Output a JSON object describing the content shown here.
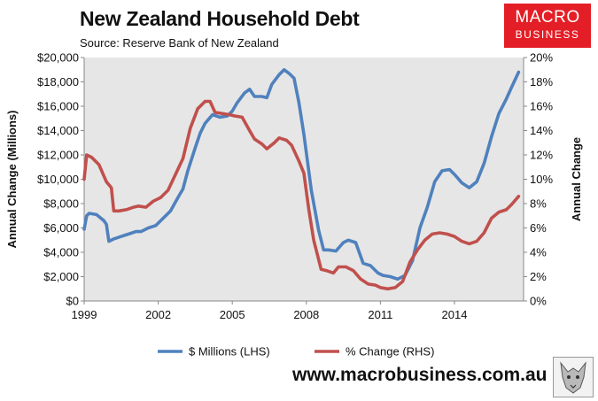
{
  "header": {
    "title": "New Zealand Household Debt",
    "source": "Source: Reserve Bank of New Zealand"
  },
  "logo": {
    "line1": "MACRO",
    "line2": "BUSINESS"
  },
  "footer": {
    "url": "www.macrobusiness.com.au"
  },
  "chart_data": {
    "type": "line",
    "ylabel_left": "Annual Change (Millions)",
    "ylabel_right": "Annual Change",
    "x_ticks": [
      "1999",
      "2002",
      "2005",
      "2008",
      "2011",
      "2014"
    ],
    "xlim": [
      1999,
      2016.8
    ],
    "y_left_ticks": [
      "$0",
      "$2,000",
      "$4,000",
      "$6,000",
      "$8,000",
      "$10,000",
      "$12,000",
      "$14,000",
      "$16,000",
      "$18,000",
      "$20,000"
    ],
    "y_left_lim": [
      0,
      20000
    ],
    "y_right_ticks": [
      "0%",
      "2%",
      "4%",
      "6%",
      "8%",
      "10%",
      "12%",
      "14%",
      "16%",
      "18%",
      "20%"
    ],
    "y_right_lim": [
      0,
      20
    ],
    "grid": false,
    "legend_position": "bottom",
    "series": [
      {
        "name": "$ Millions (LHS)",
        "axis": "left",
        "color": "#4f81bd",
        "x": [
          1999.0,
          1999.1,
          1999.2,
          1999.5,
          1999.8,
          1999.9,
          2000.0,
          2000.2,
          2000.5,
          2000.8,
          2001.1,
          2001.3,
          2001.6,
          2001.9,
          2002.2,
          2002.5,
          2002.8,
          2003.0,
          2003.2,
          2003.5,
          2003.7,
          2003.9,
          2004.2,
          2004.5,
          2004.8,
          2005.0,
          2005.2,
          2005.5,
          2005.7,
          2005.9,
          2006.2,
          2006.4,
          2006.6,
          2006.9,
          2007.1,
          2007.3,
          2007.5,
          2007.7,
          2007.9,
          2008.2,
          2008.5,
          2008.7,
          2008.9,
          2009.2,
          2009.5,
          2009.7,
          2010.0,
          2010.3,
          2010.6,
          2010.9,
          2011.1,
          2011.4,
          2011.7,
          2012.0,
          2012.3,
          2012.6,
          2012.9,
          2013.2,
          2013.5,
          2013.8,
          2014.0,
          2014.3,
          2014.6,
          2014.9,
          2015.2,
          2015.5,
          2015.8,
          2016.1,
          2016.3,
          2016.6
        ],
        "y": [
          5900,
          7000,
          7200,
          7100,
          6600,
          6300,
          4900,
          5100,
          5300,
          5500,
          5700,
          5700,
          6000,
          6200,
          6800,
          7400,
          8500,
          9200,
          10700,
          12600,
          13800,
          14600,
          15300,
          15100,
          15200,
          15600,
          16300,
          17100,
          17400,
          16800,
          16800,
          16700,
          17800,
          18600,
          19000,
          18700,
          18300,
          16300,
          13700,
          9100,
          5800,
          4200,
          4200,
          4100,
          4800,
          5000,
          4800,
          3100,
          2900,
          2300,
          2100,
          2000,
          1800,
          2100,
          3300,
          6000,
          7700,
          9800,
          10700,
          10800,
          10400,
          9700,
          9300,
          9800,
          11300,
          13500,
          15400,
          16600,
          17500,
          18800
        ]
      },
      {
        "name": "% Change (RHS)",
        "axis": "right",
        "color": "#c0504d",
        "x": [
          1999.0,
          1999.1,
          1999.3,
          1999.6,
          1999.9,
          2000.1,
          2000.2,
          2000.4,
          2000.7,
          2001.0,
          2001.2,
          2001.5,
          2001.8,
          2002.1,
          2002.4,
          2002.7,
          2003.0,
          2003.3,
          2003.6,
          2003.9,
          2004.1,
          2004.3,
          2004.6,
          2004.9,
          2005.1,
          2005.4,
          2005.7,
          2005.9,
          2006.2,
          2006.4,
          2006.7,
          2006.9,
          2007.2,
          2007.4,
          2007.7,
          2007.9,
          2008.1,
          2008.3,
          2008.6,
          2008.8,
          2009.1,
          2009.3,
          2009.6,
          2009.9,
          2010.2,
          2010.5,
          2010.8,
          2011.0,
          2011.3,
          2011.6,
          2011.9,
          2012.2,
          2012.5,
          2012.8,
          2013.1,
          2013.4,
          2013.7,
          2014.0,
          2014.3,
          2014.6,
          2014.9,
          2015.2,
          2015.5,
          2015.8,
          2016.1,
          2016.3,
          2016.6
        ],
        "y": [
          10.0,
          12.0,
          11.8,
          11.2,
          9.8,
          9.3,
          7.4,
          7.4,
          7.5,
          7.7,
          7.8,
          7.7,
          8.2,
          8.5,
          9.1,
          10.4,
          11.7,
          14.2,
          15.8,
          16.4,
          16.4,
          15.5,
          15.4,
          15.3,
          15.2,
          15.1,
          14.0,
          13.3,
          12.9,
          12.5,
          13.0,
          13.4,
          13.2,
          12.8,
          11.5,
          10.5,
          7.5,
          5.0,
          2.6,
          2.5,
          2.3,
          2.8,
          2.8,
          2.5,
          1.8,
          1.4,
          1.3,
          1.1,
          1.0,
          1.1,
          1.6,
          3.2,
          4.2,
          5.0,
          5.5,
          5.6,
          5.5,
          5.3,
          4.9,
          4.7,
          4.9,
          5.6,
          6.8,
          7.3,
          7.5,
          7.9,
          8.6
        ]
      }
    ]
  }
}
